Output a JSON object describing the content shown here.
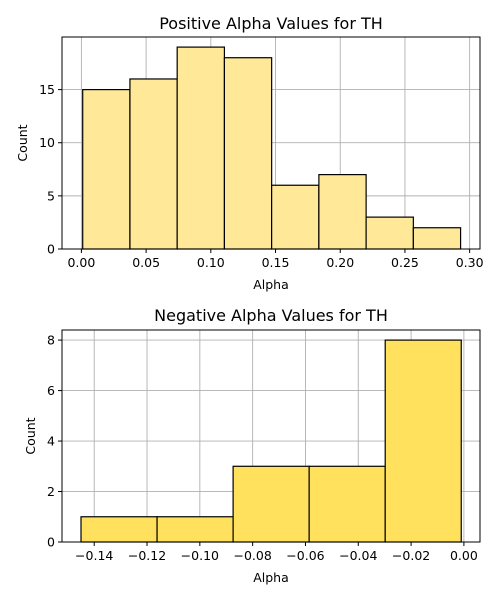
{
  "chart_data": [
    {
      "type": "bar",
      "title": "Positive Alpha Values for TH",
      "xlabel": "Alpha",
      "ylabel": "Count",
      "bar_color": "#ffe999",
      "xlim": [
        -0.015,
        0.308
      ],
      "ylim": [
        0,
        19.95
      ],
      "xticks": [
        0.0,
        0.05,
        0.1,
        0.15,
        0.2,
        0.25,
        0.3
      ],
      "xtick_labels": [
        "0.00",
        "0.05",
        "0.10",
        "0.15",
        "0.20",
        "0.25",
        "0.30"
      ],
      "yticks": [
        0,
        5,
        10,
        15
      ],
      "ytick_labels": [
        "0",
        "5",
        "10",
        "15"
      ],
      "bin_edges": [
        0.001,
        0.0375,
        0.074,
        0.1105,
        0.147,
        0.1835,
        0.22,
        0.2565,
        0.293
      ],
      "values": [
        15,
        16,
        19,
        18,
        6,
        7,
        3,
        2
      ],
      "grid": true
    },
    {
      "type": "bar",
      "title": "Negative Alpha Values for TH",
      "xlabel": "Alpha",
      "ylabel": "Count",
      "bar_color": "#ffe15e",
      "xlim": [
        -0.1522,
        0.0061
      ],
      "ylim": [
        0,
        8.4
      ],
      "xticks": [
        -0.14,
        -0.12,
        -0.1,
        -0.08,
        -0.06,
        -0.04,
        -0.02,
        0.0
      ],
      "xtick_labels": [
        "−0.14",
        "−0.12",
        "−0.10",
        "−0.08",
        "−0.06",
        "−0.04",
        "−0.02",
        "0.00"
      ],
      "yticks": [
        0,
        2,
        4,
        6,
        8
      ],
      "ytick_labels": [
        "0",
        "2",
        "4",
        "6",
        "8"
      ],
      "bin_edges": [
        -0.145,
        -0.1162,
        -0.0874,
        -0.0586,
        -0.0298,
        -0.001
      ],
      "values": [
        1,
        1,
        3,
        3,
        8
      ],
      "grid": true
    }
  ]
}
